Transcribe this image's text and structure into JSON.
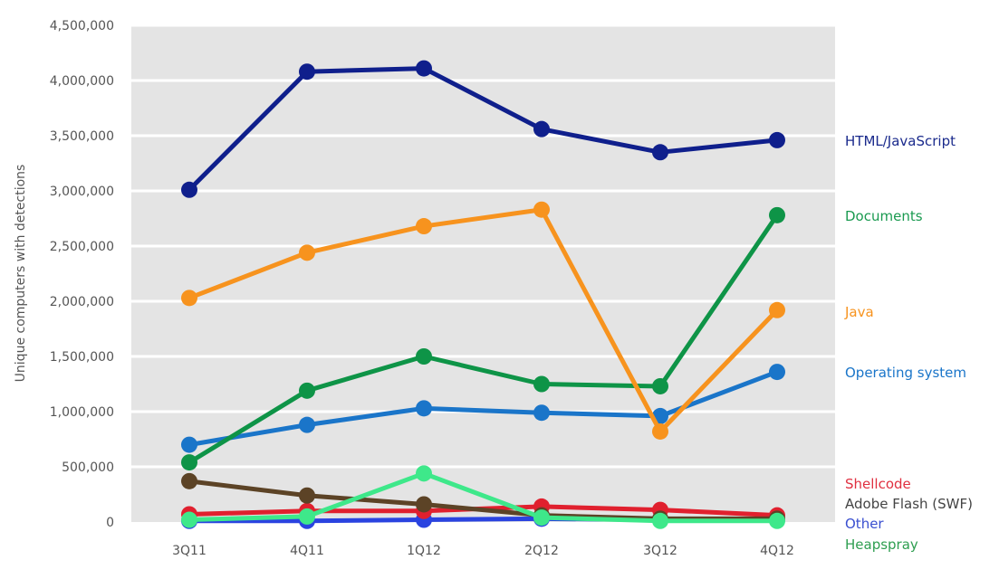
{
  "chart_data": {
    "type": "line",
    "title": "",
    "xlabel": "",
    "ylabel": "Unique computers with detections",
    "ylim": [
      0,
      4500000
    ],
    "yticks": [
      "0",
      "500,000",
      "1,000,000",
      "1,500,000",
      "2,000,000",
      "2,500,000",
      "3,000,000",
      "3,500,000",
      "4,000,000",
      "4,500,000"
    ],
    "grid": true,
    "legend": "right (inline labels)",
    "categories": [
      "3Q11",
      "4Q11",
      "1Q12",
      "2Q12",
      "3Q12",
      "4Q12"
    ],
    "series": [
      {
        "name": "HTML/JavaScript",
        "color": "#0f1f8c",
        "label_color": "#1a2a8c",
        "values": [
          3010000,
          4080000,
          4110000,
          3560000,
          3350000,
          3460000
        ]
      },
      {
        "name": "Documents",
        "color": "#0e9447",
        "label_color": "#1a9a50",
        "values": [
          540000,
          1190000,
          1500000,
          1250000,
          1230000,
          2780000
        ]
      },
      {
        "name": "Java",
        "color": "#f7931e",
        "label_color": "#f7931e",
        "values": [
          2030000,
          2440000,
          2680000,
          2830000,
          820000,
          1920000
        ]
      },
      {
        "name": "Operating system",
        "color": "#1a75c9",
        "label_color": "#1a75c9",
        "values": [
          700000,
          880000,
          1030000,
          990000,
          960000,
          1360000
        ]
      },
      {
        "name": "Adobe Flash (SWF)",
        "color": "#5c4326",
        "label_color": "#444444",
        "values": [
          370000,
          240000,
          160000,
          60000,
          30000,
          30000
        ]
      },
      {
        "name": "Heapspray",
        "color": "#3ee88a",
        "label_color": "#2e9e50",
        "values": [
          20000,
          50000,
          440000,
          40000,
          10000,
          10000
        ]
      },
      {
        "name": "Other",
        "color": "#2a43e0",
        "label_color": "#3a4fd0",
        "values": [
          10000,
          10000,
          20000,
          30000,
          20000,
          20000
        ]
      },
      {
        "name": "Shellcode",
        "color": "#e0202e",
        "label_color": "#e03040",
        "values": [
          70000,
          100000,
          100000,
          140000,
          110000,
          60000
        ]
      }
    ]
  }
}
